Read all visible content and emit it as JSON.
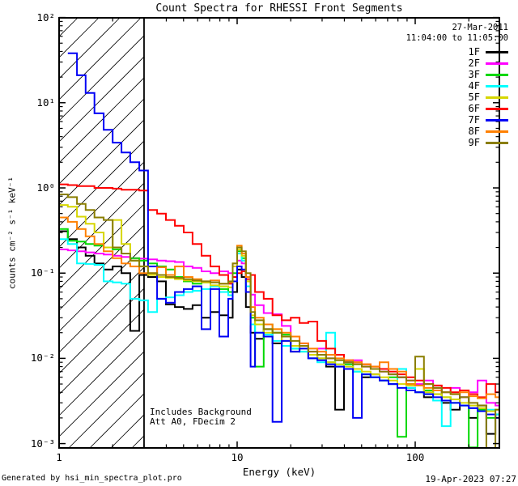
{
  "title": "Count Spectra for RHESSI Front Segments",
  "header": {
    "date": "27-Mar-2011",
    "time_range": "11:04:00 to 11:05:00"
  },
  "annotations": {
    "line1": "Includes Background",
    "line2": "Att A0, FDecim 2"
  },
  "footer": {
    "left": "Generated by hsi_min_spectra_plot.pro",
    "right": "19-Apr-2023 07:27"
  },
  "axes": {
    "xlabel": "Energy (keV)",
    "ylabel": "counts cm⁻² s⁻¹ keV⁻¹",
    "x_scale": "log",
    "y_scale": "log",
    "xlim": [
      1,
      297
    ],
    "ylim": [
      0.0009,
      100
    ],
    "x_ticks": [
      {
        "value": 1,
        "label": "1"
      },
      {
        "value": 10,
        "label": "10"
      },
      {
        "value": 100,
        "label": "100"
      }
    ],
    "y_ticks": [
      {
        "value": 100,
        "label": "10²"
      },
      {
        "value": 10,
        "label": "10¹"
      },
      {
        "value": 1,
        "label": "10⁰"
      },
      {
        "value": 0.1,
        "label": "10⁻¹"
      },
      {
        "value": 0.01,
        "label": "10⁻²"
      },
      {
        "value": 0.001,
        "label": "10⁻³"
      }
    ]
  },
  "chart_data": {
    "type": "line",
    "style": "staircase-histogram",
    "title": "Count Spectra for RHESSI Front Segments",
    "xlabel": "Energy (keV)",
    "ylabel": "counts cm-2 s-1 keV-1",
    "x_scale": "log",
    "y_scale": "log",
    "xlim": [
      1,
      297
    ],
    "ylim": [
      0.0009,
      100
    ],
    "legend_position": "top-right",
    "low_energy_cutoff_hatch_keV": [
      1.0,
      3.0
    ],
    "energy_bin_edges_keV": [
      1.0,
      1.12,
      1.26,
      1.41,
      1.58,
      1.78,
      2.0,
      2.24,
      2.51,
      2.82,
      3.16,
      3.55,
      3.98,
      4.47,
      5.01,
      5.62,
      6.31,
      7.08,
      7.94,
      8.91,
      9.44,
      10.0,
      10.6,
      11.2,
      11.9,
      12.6,
      14.1,
      15.8,
      17.8,
      20.0,
      22.4,
      25.1,
      28.2,
      31.6,
      35.5,
      39.8,
      44.7,
      50.1,
      56.2,
      63.1,
      70.8,
      79.4,
      89.1,
      100,
      112,
      126,
      141,
      158,
      178,
      200,
      224,
      251,
      282,
      300
    ],
    "series": [
      {
        "name": "1F",
        "color": "#000000",
        "values": [
          0.31,
          0.25,
          0.2,
          0.16,
          0.13,
          0.11,
          0.12,
          0.1,
          0.021,
          0.095,
          0.09,
          0.08,
          0.043,
          0.04,
          0.038,
          0.042,
          0.03,
          0.035,
          0.032,
          0.03,
          0.06,
          0.11,
          0.09,
          0.04,
          0.02,
          0.017,
          0.022,
          0.015,
          0.018,
          0.012,
          0.014,
          0.01,
          0.011,
          0.008,
          0.0025,
          0.009,
          0.0075,
          0.006,
          0.0065,
          0.0055,
          0.005,
          0.006,
          0.0045,
          0.004,
          0.0035,
          0.0045,
          0.003,
          0.0025,
          0.0035,
          0.002,
          0.0028,
          0.0013,
          0.0022
        ]
      },
      {
        "name": "2F",
        "color": "#FF00FF",
        "values": [
          0.19,
          0.185,
          0.18,
          0.175,
          0.17,
          0.165,
          0.16,
          0.155,
          0.15,
          0.148,
          0.145,
          0.14,
          0.138,
          0.135,
          0.12,
          0.115,
          0.105,
          0.1,
          0.105,
          0.1,
          0.12,
          0.14,
          0.13,
          0.09,
          0.056,
          0.042,
          0.034,
          0.033,
          0.024,
          0.018,
          0.015,
          0.012,
          0.013,
          0.01,
          0.011,
          0.009,
          0.0095,
          0.008,
          0.0075,
          0.007,
          0.0065,
          0.006,
          0.0055,
          0.005,
          0.0055,
          0.0045,
          0.004,
          0.0045,
          0.0035,
          0.004,
          0.0055,
          0.003,
          0.0028
        ]
      },
      {
        "name": "3F",
        "color": "#00D800",
        "values": [
          0.33,
          0.24,
          0.235,
          0.22,
          0.21,
          0.2,
          0.19,
          0.17,
          0.15,
          0.14,
          0.13,
          0.12,
          0.11,
          0.09,
          0.08,
          0.075,
          0.078,
          0.07,
          0.065,
          0.06,
          0.1,
          0.18,
          0.15,
          0.08,
          0.03,
          0.008,
          0.025,
          0.02,
          0.019,
          0.013,
          0.012,
          0.011,
          0.01,
          0.009,
          0.008,
          0.0085,
          0.007,
          0.0065,
          0.006,
          0.0055,
          0.006,
          0.0012,
          0.005,
          0.0048,
          0.0042,
          0.0038,
          0.0035,
          0.003,
          0.0028,
          0.0009,
          0.0025,
          0.002,
          0.0022
        ]
      },
      {
        "name": "4F",
        "color": "#00FFFF",
        "values": [
          0.25,
          0.22,
          0.13,
          0.128,
          0.125,
          0.08,
          0.078,
          0.075,
          0.05,
          0.048,
          0.035,
          0.05,
          0.052,
          0.055,
          0.06,
          0.062,
          0.065,
          0.07,
          0.06,
          0.055,
          0.09,
          0.17,
          0.14,
          0.07,
          0.025,
          0.02,
          0.019,
          0.016,
          0.014,
          0.013,
          0.012,
          0.01,
          0.009,
          0.02,
          0.0085,
          0.008,
          0.007,
          0.0065,
          0.006,
          0.0055,
          0.005,
          0.0075,
          0.0045,
          0.004,
          0.0038,
          0.0032,
          0.0016,
          0.003,
          0.0028,
          0.0026,
          0.0024,
          0.0025,
          0.0022
        ]
      },
      {
        "name": "5F",
        "color": "#D6D600",
        "values": [
          0.63,
          0.6,
          0.46,
          0.38,
          0.3,
          0.2,
          0.42,
          0.22,
          0.14,
          0.12,
          0.095,
          0.09,
          0.088,
          0.085,
          0.082,
          0.08,
          0.078,
          0.072,
          0.07,
          0.068,
          0.12,
          0.19,
          0.16,
          0.08,
          0.032,
          0.025,
          0.02,
          0.022,
          0.016,
          0.014,
          0.013,
          0.011,
          0.01,
          0.009,
          0.0085,
          0.008,
          0.0075,
          0.007,
          0.0065,
          0.006,
          0.0055,
          0.005,
          0.0048,
          0.0075,
          0.004,
          0.0038,
          0.0035,
          0.0033,
          0.003,
          0.0028,
          0.0026,
          0.0024,
          0.0025
        ]
      },
      {
        "name": "6F",
        "color": "#FF0000",
        "values": [
          1.1,
          1.08,
          1.05,
          1.05,
          1.0,
          1.0,
          0.98,
          0.95,
          0.95,
          0.93,
          0.55,
          0.5,
          0.42,
          0.36,
          0.3,
          0.22,
          0.16,
          0.12,
          0.095,
          0.075,
          0.09,
          0.1,
          0.105,
          0.085,
          0.095,
          0.06,
          0.05,
          0.032,
          0.028,
          0.03,
          0.026,
          0.027,
          0.016,
          0.013,
          0.011,
          0.0095,
          0.009,
          0.0085,
          0.008,
          0.0075,
          0.007,
          0.0065,
          0.006,
          0.0055,
          0.005,
          0.0048,
          0.0045,
          0.004,
          0.0042,
          0.0038,
          0.0035,
          0.005,
          0.004
        ]
      },
      {
        "name": "7F",
        "color": "#0000F5",
        "values": [
          null,
          38,
          21,
          13,
          7.5,
          4.8,
          3.4,
          2.6,
          2.0,
          1.6,
          0.12,
          0.05,
          0.045,
          0.06,
          0.065,
          0.07,
          0.022,
          0.065,
          0.018,
          0.05,
          0.08,
          0.12,
          0.11,
          0.06,
          0.008,
          0.02,
          0.018,
          0.0018,
          0.016,
          0.012,
          0.013,
          0.01,
          0.0095,
          0.0085,
          0.008,
          0.0075,
          0.002,
          0.0065,
          0.006,
          0.0055,
          0.005,
          0.0045,
          0.0042,
          0.004,
          0.0038,
          0.0035,
          0.0032,
          0.003,
          0.0028,
          0.0026,
          0.0024,
          0.0022,
          0.002
        ]
      },
      {
        "name": "8F",
        "color": "#FF8000",
        "values": [
          0.45,
          0.4,
          0.33,
          0.27,
          0.22,
          0.18,
          0.15,
          0.13,
          0.12,
          0.1,
          0.1,
          0.117,
          0.095,
          0.12,
          0.09,
          0.085,
          0.08,
          0.082,
          0.075,
          0.078,
          0.13,
          0.21,
          0.17,
          0.09,
          0.04,
          0.03,
          0.025,
          0.022,
          0.02,
          0.018,
          0.015,
          0.013,
          0.012,
          0.011,
          0.01,
          0.0095,
          0.009,
          0.0085,
          0.008,
          0.009,
          0.0075,
          0.007,
          0.005,
          0.0048,
          0.0045,
          0.0042,
          0.004,
          0.0038,
          0.004,
          0.0036,
          0.0034,
          0.0038,
          0.0035
        ]
      },
      {
        "name": "9F",
        "color": "#8A7E00",
        "values": [
          0.84,
          0.78,
          0.65,
          0.55,
          0.45,
          0.42,
          0.2,
          0.17,
          0.14,
          0.12,
          0.1,
          0.095,
          0.09,
          0.088,
          0.085,
          0.082,
          0.08,
          0.078,
          0.075,
          0.08,
          0.13,
          0.2,
          0.18,
          0.1,
          0.035,
          0.028,
          0.022,
          0.02,
          0.018,
          0.016,
          0.014,
          0.012,
          0.011,
          0.01,
          0.0095,
          0.009,
          0.0085,
          0.008,
          0.0075,
          0.007,
          0.0065,
          0.006,
          0.0055,
          0.0105,
          0.005,
          0.0045,
          0.004,
          0.0038,
          0.0035,
          0.003,
          0.0028,
          0.00085,
          0.0025
        ]
      }
    ]
  }
}
